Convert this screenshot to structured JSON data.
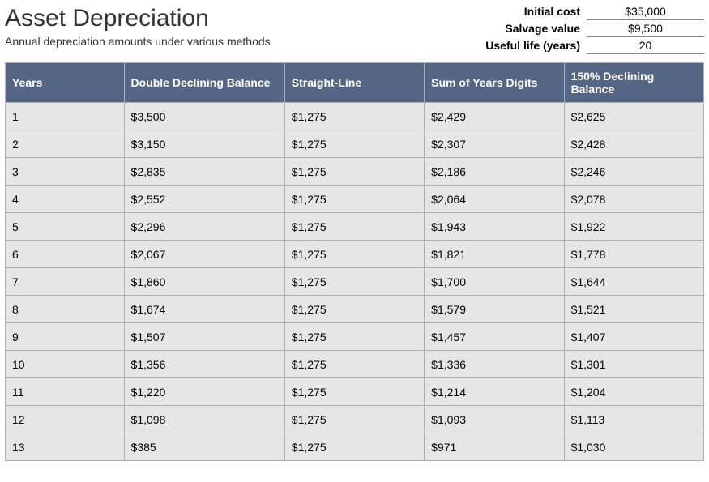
{
  "title": "Asset Depreciation",
  "subtitle": "Annual depreciation amounts under various methods",
  "params": {
    "initial_cost_label": "Initial cost",
    "initial_cost_value": "$35,000",
    "salvage_label": "Salvage value",
    "salvage_value": "$9,500",
    "life_label": "Useful life (years)",
    "life_value": "20"
  },
  "table": {
    "type": "table",
    "header_bg": "#556684",
    "header_fg": "#ffffff",
    "row_bg": "#e6e6e6",
    "border_color": "#b0b0b0",
    "font_size_pt": 11,
    "column_widths_pct": [
      17,
      23,
      20,
      20,
      20
    ],
    "columns": [
      "Years",
      "Double Declining Balance",
      "Straight-Line",
      "Sum of Years Digits",
      "150% Declining Balance"
    ],
    "rows": [
      [
        "1",
        "$3,500",
        "$1,275",
        "$2,429",
        "$2,625"
      ],
      [
        "2",
        "$3,150",
        "$1,275",
        "$2,307",
        "$2,428"
      ],
      [
        "3",
        "$2,835",
        "$1,275",
        "$2,186",
        "$2,246"
      ],
      [
        "4",
        "$2,552",
        "$1,275",
        "$2,064",
        "$2,078"
      ],
      [
        "5",
        "$2,296",
        "$1,275",
        "$1,943",
        "$1,922"
      ],
      [
        "6",
        "$2,067",
        "$1,275",
        "$1,821",
        "$1,778"
      ],
      [
        "7",
        "$1,860",
        "$1,275",
        "$1,700",
        "$1,644"
      ],
      [
        "8",
        "$1,674",
        "$1,275",
        "$1,579",
        "$1,521"
      ],
      [
        "9",
        "$1,507",
        "$1,275",
        "$1,457",
        "$1,407"
      ],
      [
        "10",
        "$1,356",
        "$1,275",
        "$1,336",
        "$1,301"
      ],
      [
        "11",
        "$1,220",
        "$1,275",
        "$1,214",
        "$1,204"
      ],
      [
        "12",
        "$1,098",
        "$1,275",
        "$1,093",
        "$1,113"
      ],
      [
        "13",
        "$385",
        "$1,275",
        "$971",
        "$1,030"
      ]
    ]
  }
}
